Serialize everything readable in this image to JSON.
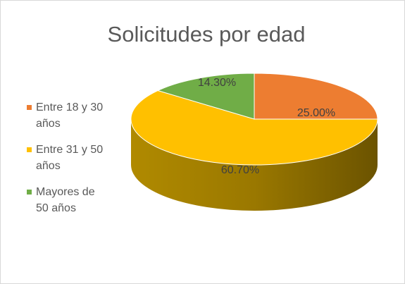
{
  "chart_data": {
    "type": "pie3d",
    "title": "Solicitudes por edad",
    "categories": [
      "Entre 18 y 30 años",
      "Entre 31 y 50 años",
      "Mayores de 50 años"
    ],
    "values": [
      25.0,
      60.7,
      14.3
    ],
    "value_labels": [
      "25.00%",
      "60.70%",
      "14.30%"
    ],
    "colors": [
      "#ed7d31",
      "#ffc000",
      "#70ad47"
    ],
    "legend": "left"
  }
}
